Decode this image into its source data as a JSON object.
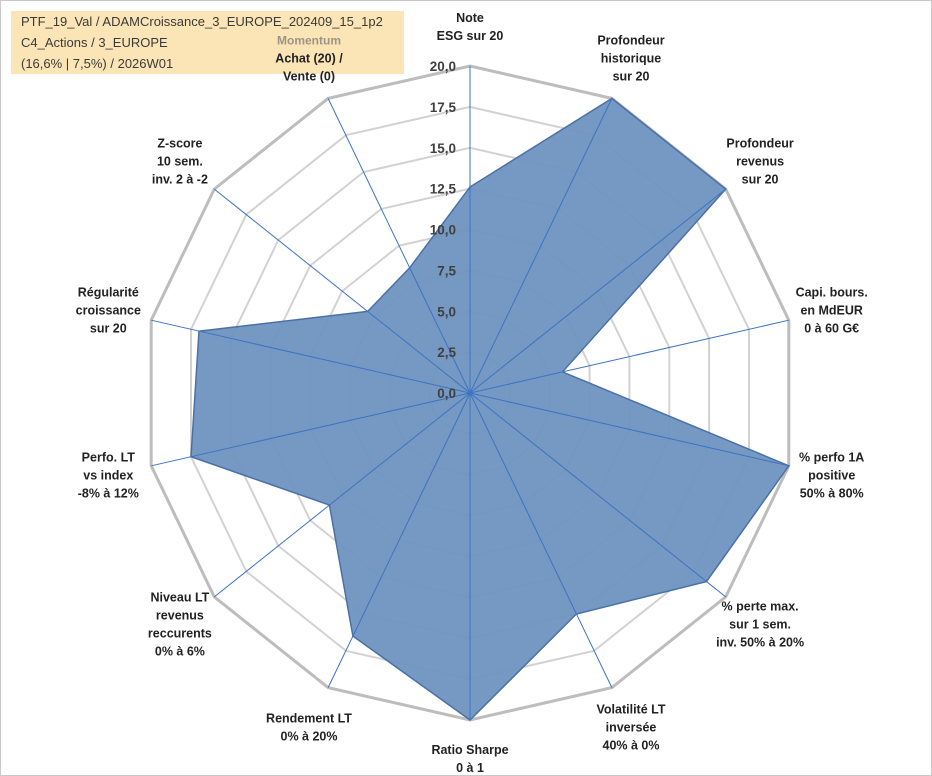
{
  "header": {
    "line1": "PTF_19_Val / ADAMCroissance_3_EUROPE_202409_15_1p2",
    "line2": "C4_Actions / 3_EUROPE",
    "line3": "(16,6% | 7,5%) / 2026W01"
  },
  "chart_data": {
    "type": "radar",
    "title": "",
    "rlim": [
      0,
      20
    ],
    "ticks": [
      "0,0",
      "2,5",
      "5,0",
      "7,5",
      "10,0",
      "12,5",
      "15,0",
      "17,5",
      "20,0"
    ],
    "grid": true,
    "axes": [
      {
        "label": [
          "Note",
          "ESG sur 20"
        ]
      },
      {
        "label": [
          "Profondeur",
          "historique",
          "sur 20"
        ]
      },
      {
        "label": [
          "Profondeur",
          "revenus",
          "sur 20"
        ]
      },
      {
        "label": [
          "Capi. bours.",
          "en MdEUR",
          "0 à 60 G€"
        ]
      },
      {
        "label": [
          "% perfo 1A",
          "positive",
          "50% à 80%"
        ]
      },
      {
        "label": [
          "% perte max.",
          "sur 1 sem.",
          "inv. 50% à 20%"
        ]
      },
      {
        "label": [
          "Volatilité LT",
          "inversée",
          "40% à 0%"
        ]
      },
      {
        "label": [
          "Ratio Sharpe",
          "0 à 1"
        ]
      },
      {
        "label": [
          "Rendement LT",
          "0% à 20%"
        ]
      },
      {
        "label": [
          "Niveau LT",
          "revenus",
          "reccurents",
          "0% à 6%"
        ]
      },
      {
        "label": [
          "Perfo. LT",
          "vs index",
          "-8% à 12%"
        ]
      },
      {
        "label": [
          "Régularité",
          "croissance",
          "sur 20"
        ]
      },
      {
        "label": [
          "Z-score",
          "10 sem.",
          "inv. 2 à -2"
        ]
      },
      {
        "label": [
          "Momentum",
          "Achat (20) /",
          "Vente (0)"
        ]
      }
    ],
    "series": [
      {
        "values": [
          12.6,
          20,
          20,
          5.8,
          20,
          18.5,
          15.0,
          20,
          16.5,
          11.0,
          17.5,
          17.0,
          8.0,
          8.5
        ],
        "color": "#6f93c0",
        "stroke": "#4a70a8"
      }
    ]
  }
}
